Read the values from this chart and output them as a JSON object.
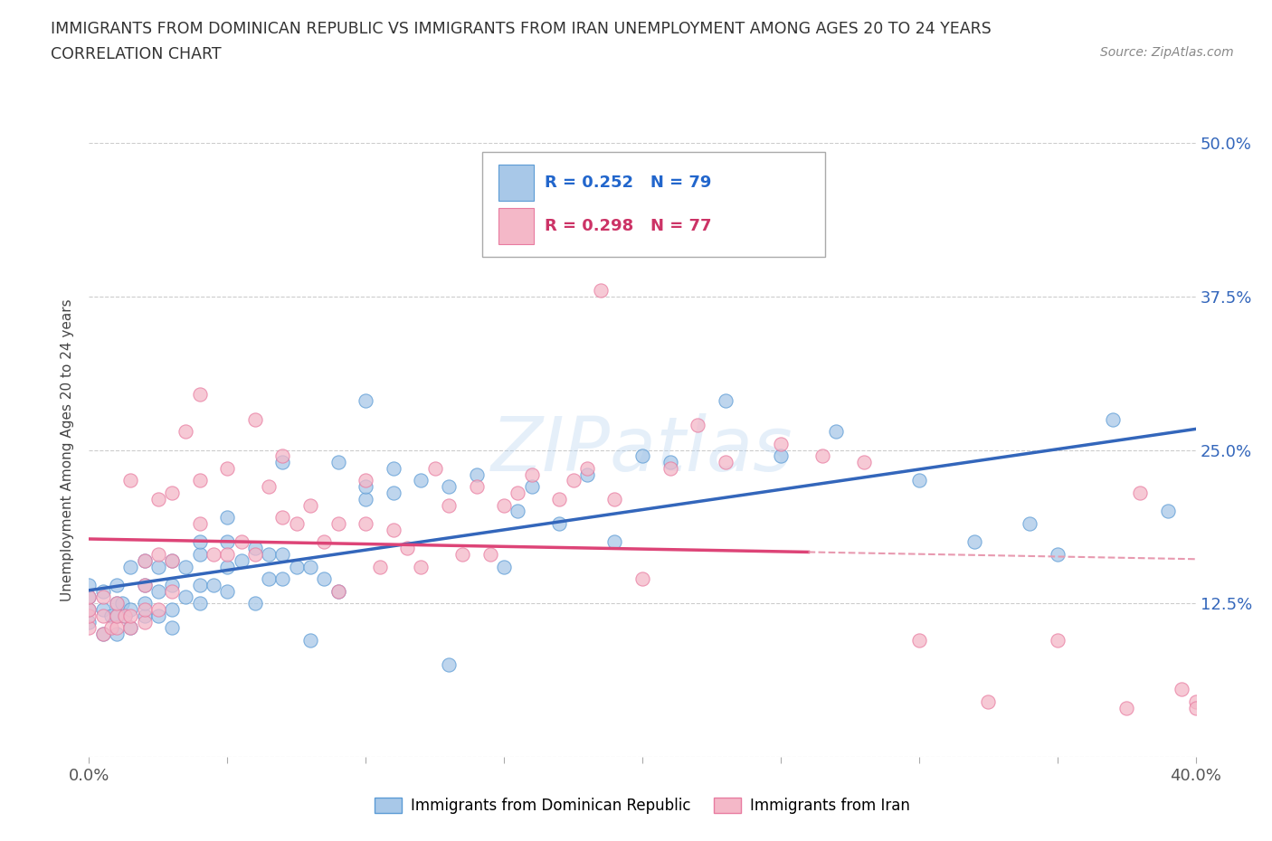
{
  "title_line1": "IMMIGRANTS FROM DOMINICAN REPUBLIC VS IMMIGRANTS FROM IRAN UNEMPLOYMENT AMONG AGES 20 TO 24 YEARS",
  "title_line2": "CORRELATION CHART",
  "source_text": "Source: ZipAtlas.com",
  "ylabel": "Unemployment Among Ages 20 to 24 years",
  "xlim": [
    0.0,
    0.4
  ],
  "ylim": [
    0.0,
    0.5
  ],
  "xticks": [
    0.0,
    0.05,
    0.1,
    0.15,
    0.2,
    0.25,
    0.3,
    0.35,
    0.4
  ],
  "yticks": [
    0.0,
    0.125,
    0.25,
    0.375,
    0.5
  ],
  "yticklabels": [
    "",
    "12.5%",
    "25.0%",
    "37.5%",
    "50.0%"
  ],
  "series1_color": "#A8C8E8",
  "series1_edge": "#5B9BD5",
  "series2_color": "#F4B8C8",
  "series2_edge": "#E87BA0",
  "line1_color": "#3366BB",
  "line2_color": "#DD4477",
  "line2_dashed_color": "#E89AB0",
  "R1": 0.252,
  "N1": 79,
  "R2": 0.298,
  "N2": 77,
  "legend1_label": "Immigrants from Dominican Republic",
  "legend2_label": "Immigrants from Iran",
  "watermark": "ZIPatlas",
  "grid_color": "#CCCCCC",
  "background_color": "#FFFFFF",
  "scatter1_x": [
    0.0,
    0.0,
    0.0,
    0.0,
    0.005,
    0.005,
    0.005,
    0.008,
    0.01,
    0.01,
    0.01,
    0.01,
    0.012,
    0.013,
    0.015,
    0.015,
    0.015,
    0.02,
    0.02,
    0.02,
    0.02,
    0.025,
    0.025,
    0.025,
    0.03,
    0.03,
    0.03,
    0.03,
    0.035,
    0.035,
    0.04,
    0.04,
    0.04,
    0.04,
    0.045,
    0.05,
    0.05,
    0.05,
    0.05,
    0.055,
    0.06,
    0.06,
    0.065,
    0.065,
    0.07,
    0.07,
    0.07,
    0.075,
    0.08,
    0.08,
    0.085,
    0.09,
    0.09,
    0.1,
    0.1,
    0.1,
    0.11,
    0.11,
    0.12,
    0.13,
    0.13,
    0.14,
    0.15,
    0.155,
    0.16,
    0.17,
    0.18,
    0.19,
    0.2,
    0.21,
    0.23,
    0.25,
    0.27,
    0.3,
    0.32,
    0.34,
    0.35,
    0.37,
    0.39
  ],
  "scatter1_y": [
    0.11,
    0.12,
    0.13,
    0.14,
    0.1,
    0.12,
    0.135,
    0.115,
    0.1,
    0.115,
    0.125,
    0.14,
    0.125,
    0.115,
    0.105,
    0.12,
    0.155,
    0.115,
    0.125,
    0.14,
    0.16,
    0.115,
    0.135,
    0.155,
    0.105,
    0.12,
    0.14,
    0.16,
    0.13,
    0.155,
    0.125,
    0.14,
    0.165,
    0.175,
    0.14,
    0.135,
    0.155,
    0.175,
    0.195,
    0.16,
    0.125,
    0.17,
    0.145,
    0.165,
    0.145,
    0.165,
    0.24,
    0.155,
    0.095,
    0.155,
    0.145,
    0.135,
    0.24,
    0.21,
    0.22,
    0.29,
    0.215,
    0.235,
    0.225,
    0.075,
    0.22,
    0.23,
    0.155,
    0.2,
    0.22,
    0.19,
    0.23,
    0.175,
    0.245,
    0.24,
    0.29,
    0.245,
    0.265,
    0.225,
    0.175,
    0.19,
    0.165,
    0.275,
    0.2
  ],
  "scatter2_x": [
    0.0,
    0.0,
    0.0,
    0.0,
    0.005,
    0.005,
    0.005,
    0.008,
    0.01,
    0.01,
    0.01,
    0.013,
    0.015,
    0.015,
    0.015,
    0.02,
    0.02,
    0.02,
    0.02,
    0.025,
    0.025,
    0.025,
    0.03,
    0.03,
    0.03,
    0.035,
    0.04,
    0.04,
    0.04,
    0.045,
    0.05,
    0.05,
    0.055,
    0.06,
    0.06,
    0.065,
    0.07,
    0.07,
    0.075,
    0.08,
    0.085,
    0.09,
    0.09,
    0.1,
    0.1,
    0.105,
    0.11,
    0.115,
    0.12,
    0.125,
    0.13,
    0.135,
    0.14,
    0.145,
    0.15,
    0.155,
    0.16,
    0.17,
    0.175,
    0.18,
    0.185,
    0.19,
    0.2,
    0.21,
    0.22,
    0.23,
    0.25,
    0.265,
    0.28,
    0.3,
    0.325,
    0.35,
    0.375,
    0.38,
    0.395,
    0.4,
    0.4
  ],
  "scatter2_y": [
    0.105,
    0.115,
    0.12,
    0.13,
    0.1,
    0.115,
    0.13,
    0.105,
    0.105,
    0.115,
    0.125,
    0.115,
    0.105,
    0.115,
    0.225,
    0.11,
    0.12,
    0.14,
    0.16,
    0.12,
    0.165,
    0.21,
    0.135,
    0.16,
    0.215,
    0.265,
    0.19,
    0.225,
    0.295,
    0.165,
    0.165,
    0.235,
    0.175,
    0.165,
    0.275,
    0.22,
    0.195,
    0.245,
    0.19,
    0.205,
    0.175,
    0.135,
    0.19,
    0.19,
    0.225,
    0.155,
    0.185,
    0.17,
    0.155,
    0.235,
    0.205,
    0.165,
    0.22,
    0.165,
    0.205,
    0.215,
    0.23,
    0.21,
    0.225,
    0.235,
    0.38,
    0.21,
    0.145,
    0.235,
    0.27,
    0.24,
    0.255,
    0.245,
    0.24,
    0.095,
    0.045,
    0.095,
    0.04,
    0.215,
    0.055,
    0.045,
    0.04
  ]
}
